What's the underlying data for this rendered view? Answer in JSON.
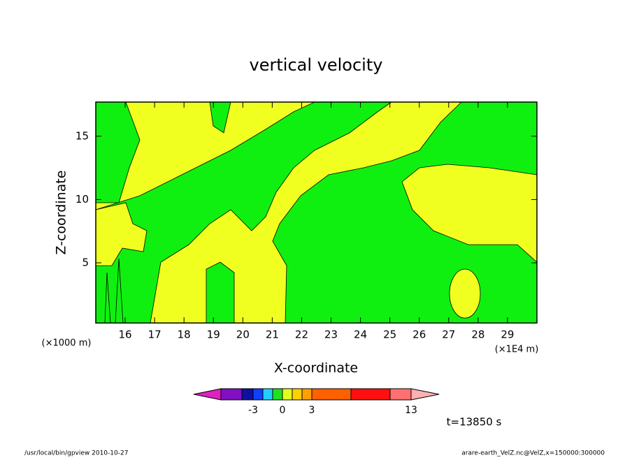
{
  "chart_data": {
    "type": "contour",
    "title": "vertical velocity",
    "x_label": "X-coordinate",
    "y_label": "Z-coordinate",
    "x_unit": "(×1E4 m)",
    "y_unit": "(×1000 m)",
    "xlim": [
      15,
      30
    ],
    "ylim": [
      0.25,
      17.7
    ],
    "xticks": [
      16,
      17,
      18,
      19,
      20,
      21,
      22,
      23,
      24,
      25,
      26,
      27,
      28,
      29
    ],
    "yticks": [
      5,
      10,
      15
    ],
    "colorbar": {
      "colors": [
        "#e020c0",
        "#8010c0",
        "#1010a0",
        "#1040ff",
        "#20d0ff",
        "#20e020",
        "#e0ff20",
        "#ffd000",
        "#ffa000",
        "#ff6000",
        "#ff1010",
        "#ff7070",
        "#ffb0b0"
      ],
      "ticks": [
        -3,
        0,
        3,
        13
      ]
    },
    "time_label": "t=13850 s",
    "footer_left": "/usr/local/bin/gpview  2010-10-27",
    "footer_right": "arare-earth_VelZ.nc@VelZ,x=150000:300000"
  }
}
